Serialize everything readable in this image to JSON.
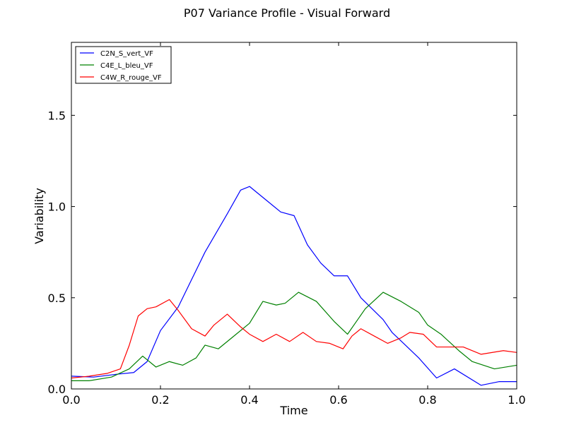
{
  "chart_data": {
    "type": "line",
    "title": "P07 Variance Profile - Visual Forward",
    "xlabel": "Time",
    "ylabel": "Variability",
    "xlim": [
      0.0,
      1.0
    ],
    "ylim": [
      0.0,
      1.9
    ],
    "xticks": [
      "0.0",
      "0.2",
      "0.4",
      "0.6",
      "0.8",
      "1.0"
    ],
    "yticks": [
      "0.0",
      "0.5",
      "1.0",
      "1.5"
    ],
    "xtick_values": [
      0.0,
      0.2,
      0.4,
      0.6,
      0.8,
      1.0
    ],
    "ytick_values": [
      0.0,
      0.5,
      1.0,
      1.5
    ],
    "grid": false,
    "legend_position": "top-left",
    "series": [
      {
        "name": "C2N_S_vert_VF",
        "color": "#0000ff",
        "x": [
          0.0,
          0.05,
          0.1,
          0.14,
          0.17,
          0.2,
          0.24,
          0.3,
          0.35,
          0.38,
          0.4,
          0.42,
          0.45,
          0.47,
          0.5,
          0.53,
          0.56,
          0.59,
          0.62,
          0.65,
          0.7,
          0.72,
          0.75,
          0.78,
          0.82,
          0.86,
          0.92,
          0.96,
          1.0
        ],
        "y": [
          0.07,
          0.065,
          0.08,
          0.09,
          0.15,
          0.32,
          0.45,
          0.75,
          0.96,
          1.09,
          1.11,
          1.07,
          1.01,
          0.97,
          0.95,
          0.79,
          0.69,
          0.62,
          0.62,
          0.5,
          0.38,
          0.31,
          0.24,
          0.17,
          0.06,
          0.11,
          0.02,
          0.04,
          0.04
        ]
      },
      {
        "name": "C4E_L_bleu_VF",
        "color": "#008000",
        "x": [
          0.0,
          0.04,
          0.09,
          0.13,
          0.16,
          0.19,
          0.22,
          0.25,
          0.28,
          0.3,
          0.33,
          0.36,
          0.4,
          0.43,
          0.46,
          0.48,
          0.51,
          0.55,
          0.59,
          0.62,
          0.66,
          0.7,
          0.74,
          0.78,
          0.8,
          0.83,
          0.87,
          0.9,
          0.95,
          1.0
        ],
        "y": [
          0.045,
          0.045,
          0.065,
          0.11,
          0.18,
          0.12,
          0.15,
          0.13,
          0.17,
          0.24,
          0.22,
          0.28,
          0.36,
          0.48,
          0.46,
          0.47,
          0.53,
          0.48,
          0.37,
          0.3,
          0.44,
          0.53,
          0.48,
          0.42,
          0.35,
          0.3,
          0.21,
          0.15,
          0.11,
          0.13
        ]
      },
      {
        "name": "C4W_R_rouge_VF",
        "color": "#ff0000",
        "x": [
          0.0,
          0.04,
          0.08,
          0.11,
          0.13,
          0.15,
          0.17,
          0.19,
          0.22,
          0.24,
          0.27,
          0.3,
          0.32,
          0.35,
          0.38,
          0.4,
          0.43,
          0.46,
          0.49,
          0.52,
          0.55,
          0.58,
          0.61,
          0.63,
          0.65,
          0.68,
          0.71,
          0.74,
          0.76,
          0.79,
          0.82,
          0.85,
          0.88,
          0.92,
          0.97,
          1.0
        ],
        "y": [
          0.06,
          0.07,
          0.085,
          0.11,
          0.24,
          0.4,
          0.44,
          0.45,
          0.49,
          0.43,
          0.33,
          0.29,
          0.35,
          0.41,
          0.34,
          0.3,
          0.26,
          0.3,
          0.26,
          0.31,
          0.26,
          0.25,
          0.22,
          0.29,
          0.33,
          0.29,
          0.25,
          0.28,
          0.31,
          0.3,
          0.23,
          0.23,
          0.23,
          0.19,
          0.21,
          0.2
        ]
      }
    ]
  }
}
